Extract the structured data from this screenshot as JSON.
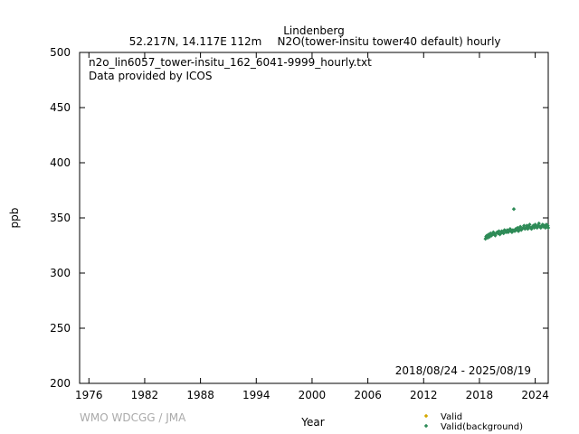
{
  "chart_data": {
    "type": "scatter",
    "title": "Lindenberg",
    "subtitle_location": "52.217N, 14.117E 112m",
    "subtitle_dataset": "N2O(tower-insitu tower40 default) hourly",
    "annotation_file": "n2o_lin6057_tower-insitu_162_6041-9999_hourly.txt",
    "annotation_provider": "Data provided by ICOS",
    "date_range": "2018/08/24 - 2025/08/19",
    "xlabel": "Year",
    "ylabel": "ppb",
    "xlim": [
      1975,
      2025.4
    ],
    "ylim": [
      200,
      500
    ],
    "x_ticks": [
      1976,
      1982,
      1988,
      1994,
      2000,
      2006,
      2012,
      2018,
      2024
    ],
    "y_ticks": [
      200,
      250,
      300,
      350,
      400,
      450,
      500
    ],
    "grid": false,
    "legend_position": "bottom-right",
    "watermark": "WMO WDCGG / JMA",
    "colors": {
      "valid": "#d4a800",
      "valid_background": "#2e8b57"
    },
    "series": [
      {
        "name": "Valid",
        "points": []
      },
      {
        "name": "Valid(background)",
        "points": [
          [
            2018.65,
            331
          ],
          [
            2018.72,
            333
          ],
          [
            2018.8,
            334
          ],
          [
            2018.9,
            332
          ],
          [
            2019.0,
            335
          ],
          [
            2019.1,
            333
          ],
          [
            2019.2,
            336
          ],
          [
            2019.3,
            334
          ],
          [
            2019.4,
            335
          ],
          [
            2019.5,
            337
          ],
          [
            2019.6,
            335
          ],
          [
            2019.7,
            334
          ],
          [
            2019.8,
            336
          ],
          [
            2019.9,
            337
          ],
          [
            2020.0,
            336
          ],
          [
            2020.1,
            338
          ],
          [
            2020.2,
            335
          ],
          [
            2020.3,
            336
          ],
          [
            2020.4,
            338
          ],
          [
            2020.5,
            337
          ],
          [
            2020.6,
            336
          ],
          [
            2020.7,
            339
          ],
          [
            2020.8,
            338
          ],
          [
            2020.9,
            337
          ],
          [
            2021.0,
            339
          ],
          [
            2021.1,
            337
          ],
          [
            2021.2,
            338
          ],
          [
            2021.3,
            340
          ],
          [
            2021.4,
            338
          ],
          [
            2021.5,
            337
          ],
          [
            2021.6,
            339
          ],
          [
            2021.7,
            358
          ],
          [
            2021.8,
            338
          ],
          [
            2021.9,
            340
          ],
          [
            2022.0,
            339
          ],
          [
            2022.1,
            341
          ],
          [
            2022.2,
            338
          ],
          [
            2022.3,
            340
          ],
          [
            2022.4,
            342
          ],
          [
            2022.5,
            339
          ],
          [
            2022.6,
            340
          ],
          [
            2022.7,
            341
          ],
          [
            2022.8,
            343
          ],
          [
            2022.9,
            340
          ],
          [
            2023.0,
            341
          ],
          [
            2023.1,
            343
          ],
          [
            2023.2,
            340
          ],
          [
            2023.3,
            342
          ],
          [
            2023.4,
            344
          ],
          [
            2023.5,
            341
          ],
          [
            2023.6,
            340
          ],
          [
            2023.7,
            342
          ],
          [
            2023.8,
            343
          ],
          [
            2023.9,
            341
          ],
          [
            2024.0,
            344
          ],
          [
            2024.1,
            342
          ],
          [
            2024.2,
            341
          ],
          [
            2024.3,
            343
          ],
          [
            2024.4,
            345
          ],
          [
            2024.5,
            342
          ],
          [
            2024.6,
            341
          ],
          [
            2024.7,
            343
          ],
          [
            2024.8,
            344
          ],
          [
            2024.9,
            342
          ],
          [
            2025.0,
            343
          ],
          [
            2025.1,
            341
          ],
          [
            2025.2,
            344
          ],
          [
            2025.3,
            342
          ],
          [
            2025.35,
            343
          ],
          [
            2025.4,
            341
          ]
        ]
      }
    ]
  }
}
